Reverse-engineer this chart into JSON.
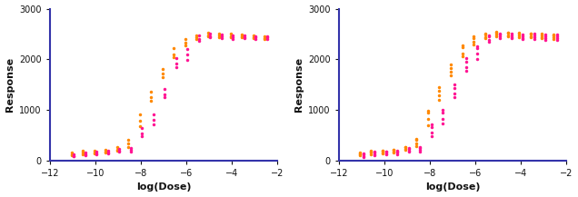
{
  "axis_color": "#3333aa",
  "orange_color": "#FF8800",
  "pink_color": "#FF1493",
  "ylabel": "Response",
  "xlabel": "log(Dose)",
  "ylim": [
    0,
    3000
  ],
  "xlim": [
    -12,
    -2
  ],
  "yticks": [
    0,
    1000,
    2000,
    3000
  ],
  "xticks": [
    -12,
    -10,
    -8,
    -6,
    -4,
    -2
  ],
  "label_fontsize": 8,
  "tick_fontsize": 7,
  "marker_size": 2.5,
  "panel1": {
    "orange": {
      "x": [
        -11,
        -11,
        -11,
        -10.5,
        -10.5,
        -10.5,
        -10,
        -10,
        -10,
        -9.5,
        -9.5,
        -9.5,
        -9,
        -9,
        -9,
        -8.5,
        -8.5,
        -8.5,
        -8,
        -8,
        -8,
        -7.5,
        -7.5,
        -7.5,
        -7,
        -7,
        -7,
        -6.5,
        -6.5,
        -6.5,
        -6,
        -6,
        -6,
        -5.5,
        -5.5,
        -5.5,
        -5,
        -5,
        -5,
        -4.5,
        -4.5,
        -4.5,
        -4,
        -4,
        -4,
        -3.5,
        -3.5,
        -3.5,
        -3,
        -3,
        -3,
        -2.5,
        -2.5,
        -2.5
      ],
      "y": [
        130,
        160,
        110,
        150,
        190,
        120,
        160,
        200,
        140,
        180,
        210,
        160,
        220,
        270,
        200,
        330,
        410,
        270,
        780,
        920,
        680,
        1250,
        1360,
        1180,
        1720,
        1800,
        1650,
        2100,
        2220,
        2050,
        2330,
        2400,
        2280,
        2430,
        2480,
        2400,
        2480,
        2520,
        2450,
        2470,
        2510,
        2440,
        2460,
        2500,
        2430,
        2450,
        2490,
        2430,
        2430,
        2470,
        2410,
        2420,
        2460,
        2400
      ]
    },
    "pink": {
      "x": [
        -11,
        -11,
        -11,
        -10.5,
        -10.5,
        -10.5,
        -10,
        -10,
        -10,
        -9.5,
        -9.5,
        -9.5,
        -9,
        -9,
        -9,
        -8.5,
        -8.5,
        -8.5,
        -8,
        -8,
        -8,
        -7.5,
        -7.5,
        -7.5,
        -7,
        -7,
        -7,
        -6.5,
        -6.5,
        -6.5,
        -6,
        -6,
        -6,
        -5.5,
        -5.5,
        -5.5,
        -5,
        -5,
        -5,
        -4.5,
        -4.5,
        -4.5,
        -4,
        -4,
        -4,
        -3.5,
        -3.5,
        -3.5,
        -3,
        -3,
        -3,
        -2.5,
        -2.5,
        -2.5
      ],
      "y": [
        95,
        125,
        80,
        130,
        165,
        105,
        145,
        175,
        120,
        160,
        190,
        140,
        195,
        230,
        175,
        210,
        250,
        185,
        540,
        640,
        480,
        800,
        920,
        720,
        1310,
        1410,
        1250,
        1910,
        2030,
        1840,
        2090,
        2200,
        1980,
        2400,
        2470,
        2360,
        2460,
        2500,
        2430,
        2450,
        2490,
        2420,
        2430,
        2470,
        2400,
        2440,
        2470,
        2410,
        2430,
        2460,
        2400,
        2430,
        2460,
        2400
      ]
    }
  },
  "panel2": {
    "orange": {
      "x": [
        -11,
        -11,
        -11,
        -11,
        -10.5,
        -10.5,
        -10.5,
        -10.5,
        -10,
        -10,
        -10,
        -10,
        -9.5,
        -9.5,
        -9.5,
        -9.5,
        -9,
        -9,
        -9,
        -9,
        -8.5,
        -8.5,
        -8.5,
        -8.5,
        -8,
        -8,
        -8,
        -8,
        -7.5,
        -7.5,
        -7.5,
        -7.5,
        -7,
        -7,
        -7,
        -7,
        -6.5,
        -6.5,
        -6.5,
        -6.5,
        -6,
        -6,
        -6,
        -6,
        -5.5,
        -5.5,
        -5.5,
        -5.5,
        -5,
        -5,
        -5,
        -5,
        -4.5,
        -4.5,
        -4.5,
        -4.5,
        -4,
        -4,
        -4,
        -4,
        -3.5,
        -3.5,
        -3.5,
        -3.5,
        -3,
        -3,
        -3,
        -3,
        -2.5,
        -2.5,
        -2.5,
        -2.5
      ],
      "y": [
        120,
        145,
        105,
        160,
        155,
        185,
        125,
        195,
        165,
        195,
        140,
        200,
        185,
        210,
        165,
        215,
        225,
        265,
        205,
        275,
        340,
        410,
        280,
        430,
        820,
        940,
        700,
        980,
        1280,
        1380,
        1200,
        1450,
        1750,
        1820,
        1680,
        1890,
        2120,
        2230,
        2060,
        2280,
        2350,
        2420,
        2300,
        2450,
        2440,
        2490,
        2410,
        2510,
        2490,
        2530,
        2460,
        2540,
        2480,
        2520,
        2450,
        2530,
        2470,
        2510,
        2440,
        2520,
        2460,
        2500,
        2430,
        2510,
        2440,
        2480,
        2410,
        2500,
        2430,
        2470,
        2400,
        2490
      ]
    },
    "pink": {
      "x": [
        -11,
        -11,
        -11,
        -11,
        -10.5,
        -10.5,
        -10.5,
        -10.5,
        -10,
        -10,
        -10,
        -10,
        -9.5,
        -9.5,
        -9.5,
        -9.5,
        -9,
        -9,
        -9,
        -9,
        -8.5,
        -8.5,
        -8.5,
        -8.5,
        -8,
        -8,
        -8,
        -8,
        -7.5,
        -7.5,
        -7.5,
        -7.5,
        -7,
        -7,
        -7,
        -7,
        -6.5,
        -6.5,
        -6.5,
        -6.5,
        -6,
        -6,
        -6,
        -6,
        -5.5,
        -5.5,
        -5.5,
        -5.5,
        -5,
        -5,
        -5,
        -5,
        -4.5,
        -4.5,
        -4.5,
        -4.5,
        -4,
        -4,
        -4,
        -4,
        -3.5,
        -3.5,
        -3.5,
        -3.5,
        -3,
        -3,
        -3,
        -3,
        -2.5,
        -2.5,
        -2.5,
        -2.5
      ],
      "y": [
        90,
        120,
        75,
        140,
        125,
        160,
        100,
        170,
        140,
        170,
        115,
        180,
        155,
        185,
        130,
        190,
        190,
        225,
        170,
        240,
        205,
        245,
        180,
        260,
        550,
        660,
        490,
        720,
        820,
        940,
        730,
        1000,
        1330,
        1430,
        1260,
        1500,
        1840,
        1960,
        1770,
        2020,
        2120,
        2220,
        2010,
        2260,
        2380,
        2450,
        2340,
        2480,
        2450,
        2490,
        2420,
        2510,
        2440,
        2480,
        2410,
        2500,
        2420,
        2460,
        2400,
        2490,
        2430,
        2470,
        2400,
        2500,
        2420,
        2460,
        2390,
        2490,
        2420,
        2460,
        2390,
        2490
      ]
    }
  }
}
